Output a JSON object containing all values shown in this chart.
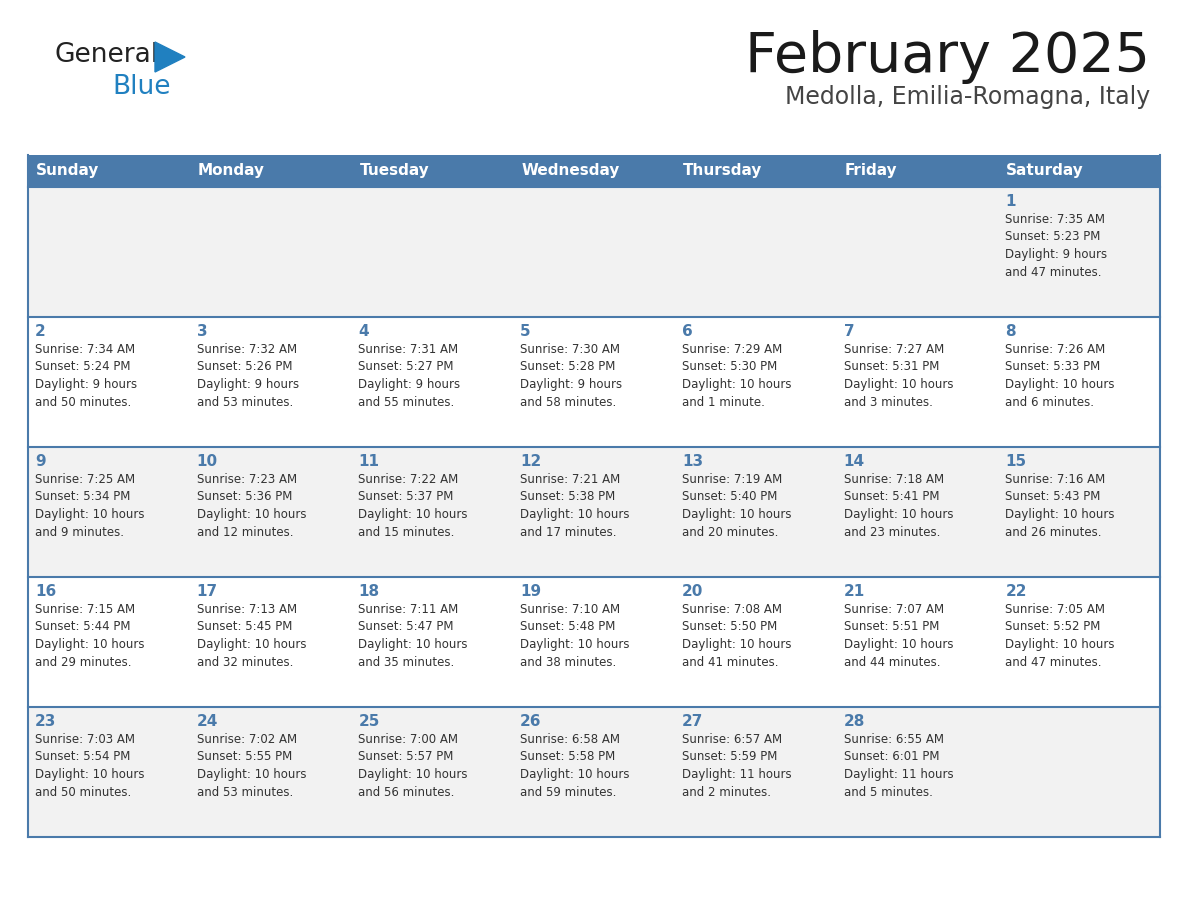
{
  "title": "February 2025",
  "subtitle": "Medolla, Emilia-Romagna, Italy",
  "header_color": "#4a7aaa",
  "header_text_color": "#FFFFFF",
  "cell_bg_light": "#f2f2f2",
  "cell_bg_white": "#FFFFFF",
  "day_num_color": "#4a7aaa",
  "info_text_color": "#333333",
  "title_color": "#1a1a1a",
  "subtitle_color": "#444444",
  "border_color": "#4a7aaa",
  "logo_general_color": "#222222",
  "logo_blue_color": "#2080C0",
  "logo_triangle_color": "#2080C0",
  "days_of_week": [
    "Sunday",
    "Monday",
    "Tuesday",
    "Wednesday",
    "Thursday",
    "Friday",
    "Saturday"
  ],
  "weeks": [
    [
      {
        "day": "",
        "info": ""
      },
      {
        "day": "",
        "info": ""
      },
      {
        "day": "",
        "info": ""
      },
      {
        "day": "",
        "info": ""
      },
      {
        "day": "",
        "info": ""
      },
      {
        "day": "",
        "info": ""
      },
      {
        "day": "1",
        "info": "Sunrise: 7:35 AM\nSunset: 5:23 PM\nDaylight: 9 hours\nand 47 minutes."
      }
    ],
    [
      {
        "day": "2",
        "info": "Sunrise: 7:34 AM\nSunset: 5:24 PM\nDaylight: 9 hours\nand 50 minutes."
      },
      {
        "day": "3",
        "info": "Sunrise: 7:32 AM\nSunset: 5:26 PM\nDaylight: 9 hours\nand 53 minutes."
      },
      {
        "day": "4",
        "info": "Sunrise: 7:31 AM\nSunset: 5:27 PM\nDaylight: 9 hours\nand 55 minutes."
      },
      {
        "day": "5",
        "info": "Sunrise: 7:30 AM\nSunset: 5:28 PM\nDaylight: 9 hours\nand 58 minutes."
      },
      {
        "day": "6",
        "info": "Sunrise: 7:29 AM\nSunset: 5:30 PM\nDaylight: 10 hours\nand 1 minute."
      },
      {
        "day": "7",
        "info": "Sunrise: 7:27 AM\nSunset: 5:31 PM\nDaylight: 10 hours\nand 3 minutes."
      },
      {
        "day": "8",
        "info": "Sunrise: 7:26 AM\nSunset: 5:33 PM\nDaylight: 10 hours\nand 6 minutes."
      }
    ],
    [
      {
        "day": "9",
        "info": "Sunrise: 7:25 AM\nSunset: 5:34 PM\nDaylight: 10 hours\nand 9 minutes."
      },
      {
        "day": "10",
        "info": "Sunrise: 7:23 AM\nSunset: 5:36 PM\nDaylight: 10 hours\nand 12 minutes."
      },
      {
        "day": "11",
        "info": "Sunrise: 7:22 AM\nSunset: 5:37 PM\nDaylight: 10 hours\nand 15 minutes."
      },
      {
        "day": "12",
        "info": "Sunrise: 7:21 AM\nSunset: 5:38 PM\nDaylight: 10 hours\nand 17 minutes."
      },
      {
        "day": "13",
        "info": "Sunrise: 7:19 AM\nSunset: 5:40 PM\nDaylight: 10 hours\nand 20 minutes."
      },
      {
        "day": "14",
        "info": "Sunrise: 7:18 AM\nSunset: 5:41 PM\nDaylight: 10 hours\nand 23 minutes."
      },
      {
        "day": "15",
        "info": "Sunrise: 7:16 AM\nSunset: 5:43 PM\nDaylight: 10 hours\nand 26 minutes."
      }
    ],
    [
      {
        "day": "16",
        "info": "Sunrise: 7:15 AM\nSunset: 5:44 PM\nDaylight: 10 hours\nand 29 minutes."
      },
      {
        "day": "17",
        "info": "Sunrise: 7:13 AM\nSunset: 5:45 PM\nDaylight: 10 hours\nand 32 minutes."
      },
      {
        "day": "18",
        "info": "Sunrise: 7:11 AM\nSunset: 5:47 PM\nDaylight: 10 hours\nand 35 minutes."
      },
      {
        "day": "19",
        "info": "Sunrise: 7:10 AM\nSunset: 5:48 PM\nDaylight: 10 hours\nand 38 minutes."
      },
      {
        "day": "20",
        "info": "Sunrise: 7:08 AM\nSunset: 5:50 PM\nDaylight: 10 hours\nand 41 minutes."
      },
      {
        "day": "21",
        "info": "Sunrise: 7:07 AM\nSunset: 5:51 PM\nDaylight: 10 hours\nand 44 minutes."
      },
      {
        "day": "22",
        "info": "Sunrise: 7:05 AM\nSunset: 5:52 PM\nDaylight: 10 hours\nand 47 minutes."
      }
    ],
    [
      {
        "day": "23",
        "info": "Sunrise: 7:03 AM\nSunset: 5:54 PM\nDaylight: 10 hours\nand 50 minutes."
      },
      {
        "day": "24",
        "info": "Sunrise: 7:02 AM\nSunset: 5:55 PM\nDaylight: 10 hours\nand 53 minutes."
      },
      {
        "day": "25",
        "info": "Sunrise: 7:00 AM\nSunset: 5:57 PM\nDaylight: 10 hours\nand 56 minutes."
      },
      {
        "day": "26",
        "info": "Sunrise: 6:58 AM\nSunset: 5:58 PM\nDaylight: 10 hours\nand 59 minutes."
      },
      {
        "day": "27",
        "info": "Sunrise: 6:57 AM\nSunset: 5:59 PM\nDaylight: 11 hours\nand 2 minutes."
      },
      {
        "day": "28",
        "info": "Sunrise: 6:55 AM\nSunset: 6:01 PM\nDaylight: 11 hours\nand 5 minutes."
      },
      {
        "day": "",
        "info": ""
      }
    ]
  ]
}
